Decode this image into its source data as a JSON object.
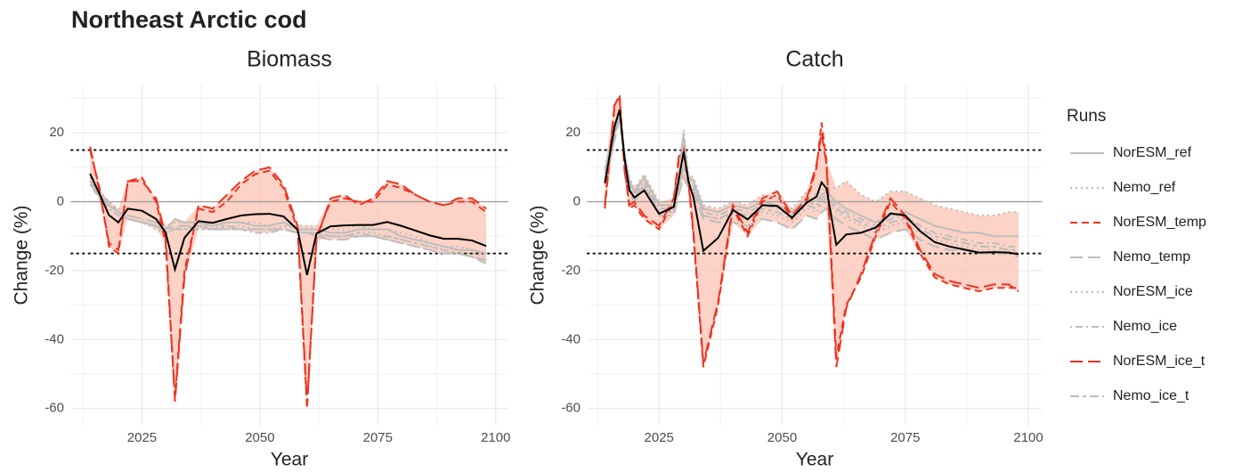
{
  "title": "Northeast Arctic cod",
  "legend_title": "Runs",
  "chart_data": [
    {
      "type": "line",
      "title": "Biomass",
      "xlabel": "Year",
      "ylabel": "Change (%)",
      "x": [
        2014,
        2016,
        2018,
        2020,
        2022,
        2025,
        2028,
        2030,
        2032,
        2034,
        2037,
        2040,
        2043,
        2046,
        2049,
        2052,
        2055,
        2058,
        2060,
        2062,
        2065,
        2068,
        2071,
        2074,
        2077,
        2080,
        2083,
        2086,
        2089,
        2092,
        2095,
        2098
      ],
      "xlim": [
        2010,
        2102.5
      ],
      "xticks": [
        2025,
        2050,
        2075,
        2100
      ],
      "ylim": [
        -65,
        34
      ],
      "yticks": [
        -60,
        -40,
        -20,
        0,
        20
      ],
      "hlines": [
        {
          "value": 15,
          "style": "dotted"
        },
        {
          "value": 0,
          "style": "solid"
        },
        {
          "value": -15,
          "style": "dotted"
        }
      ],
      "ribbon": true,
      "mean_line": true,
      "grid": true,
      "series": [
        {
          "name": "NorESM_ref",
          "color": "#bdbdbd",
          "dash": "solid",
          "values": [
            6,
            2,
            -1,
            -3,
            -5,
            -6,
            -7,
            -8,
            -5,
            -6,
            -6,
            -7,
            -6,
            -6,
            -7,
            -7,
            -6,
            -8,
            -8,
            -8,
            -9,
            -9,
            -8,
            -8,
            -8,
            -10,
            -11,
            -12,
            -13,
            -14,
            -14,
            -15
          ]
        },
        {
          "name": "Nemo_ref",
          "color": "#bdbdbd",
          "dash": "dotted",
          "values": [
            5,
            1,
            -2,
            -4,
            -5,
            -6,
            -8,
            -9,
            -8,
            -8,
            -7,
            -7,
            -7,
            -7,
            -8,
            -8,
            -7,
            -8,
            -9,
            -9,
            -10,
            -10,
            -9,
            -9,
            -10,
            -11,
            -12,
            -13,
            -14,
            -15,
            -15,
            -16
          ]
        },
        {
          "name": "NorESM_temp",
          "color": "#ee3322",
          "dash": "dashed",
          "values": [
            15,
            4,
            -13,
            -15,
            6,
            7,
            0,
            -12,
            -57,
            -20,
            -2,
            -3,
            0,
            5,
            8,
            9,
            4,
            -8,
            -60,
            -10,
            0,
            1,
            0,
            0,
            5,
            4,
            2,
            0,
            -1,
            0,
            0,
            -3
          ]
        },
        {
          "name": "Nemo_temp",
          "color": "#bdbdbd",
          "dash": "longdash",
          "values": [
            6,
            2,
            0,
            -3,
            -4,
            -5,
            -6,
            -8,
            -7,
            -7,
            -7,
            -8,
            -8,
            -8,
            -8,
            -8,
            -8,
            -9,
            -9,
            -10,
            -11,
            -11,
            -10,
            -10,
            -11,
            -12,
            -13,
            -14,
            -15,
            -15,
            -16,
            -17
          ]
        },
        {
          "name": "NorESM_ice",
          "color": "#bdbdbd",
          "dash": "dotted",
          "values": [
            7,
            3,
            0,
            -2,
            -4,
            -5,
            -6,
            -7,
            -6,
            -6,
            -6,
            -6,
            -6,
            -6,
            -6,
            -7,
            -6,
            -7,
            -7,
            -7,
            -8,
            -8,
            -7,
            -8,
            -8,
            -9,
            -10,
            -12,
            -13,
            -13,
            -14,
            -15
          ]
        },
        {
          "name": "Nemo_ice",
          "color": "#bdbdbd",
          "dash": "dotdash",
          "values": [
            5,
            1,
            -2,
            -4,
            -5,
            -6,
            -7,
            -8,
            -8,
            -8,
            -8,
            -8,
            -8,
            -8,
            -9,
            -9,
            -8,
            -9,
            -9,
            -10,
            -10,
            -10,
            -10,
            -10,
            -11,
            -12,
            -13,
            -14,
            -15,
            -15,
            -16,
            -17
          ]
        },
        {
          "name": "NorESM_ice_t",
          "color": "#ee3322",
          "dash": "longdash",
          "values": [
            16,
            3,
            -12,
            -14,
            6,
            6,
            1,
            -10,
            -58,
            -22,
            -1,
            -2,
            2,
            6,
            9,
            10,
            5,
            -7,
            -59,
            -11,
            1,
            2,
            -1,
            1,
            6,
            5,
            2,
            0,
            -1,
            1,
            1,
            -2
          ]
        },
        {
          "name": "Nemo_ice_t",
          "color": "#bdbdbd",
          "dash": "twodash",
          "values": [
            5,
            2,
            -1,
            -3,
            -5,
            -6,
            -7,
            -9,
            -8,
            -7,
            -8,
            -8,
            -7,
            -8,
            -8,
            -8,
            -8,
            -9,
            -9,
            -9,
            -10,
            -10,
            -9,
            -10,
            -10,
            -11,
            -12,
            -13,
            -14,
            -15,
            -16,
            -18
          ]
        }
      ]
    },
    {
      "type": "line",
      "title": "Catch",
      "xlabel": "Year",
      "ylabel": "Change (%)",
      "x": [
        2014,
        2016,
        2017,
        2018,
        2019,
        2020,
        2022,
        2025,
        2028,
        2029,
        2030,
        2031,
        2032,
        2034,
        2037,
        2040,
        2043,
        2046,
        2049,
        2052,
        2055,
        2057,
        2058,
        2059,
        2061,
        2063,
        2066,
        2069,
        2072,
        2075,
        2078,
        2081,
        2084,
        2087,
        2090,
        2093,
        2096,
        2098
      ],
      "xlim": [
        2010.5,
        2102.7
      ],
      "xticks": [
        2025,
        2050,
        2075,
        2100
      ],
      "ylim": [
        -65,
        34
      ],
      "yticks": [
        -60,
        -40,
        -20,
        0,
        20
      ],
      "hlines": [
        {
          "value": 15,
          "style": "dotted"
        },
        {
          "value": 0,
          "style": "solid"
        },
        {
          "value": -15,
          "style": "dotted"
        }
      ],
      "ribbon": true,
      "mean_line": true,
      "grid": true,
      "series": [
        {
          "name": "NorESM_ref",
          "color": "#bdbdbd",
          "dash": "solid",
          "values": [
            9,
            21,
            26,
            14,
            6,
            3,
            7,
            -1,
            -1,
            5,
            10,
            7,
            6,
            -2,
            -3,
            -1,
            -2,
            0,
            -1,
            -3,
            1,
            0,
            2,
            3,
            0,
            -2,
            -4,
            -6,
            -4,
            -3,
            -5,
            -7,
            -8,
            -9,
            -9,
            -10,
            -10,
            -10
          ]
        },
        {
          "name": "Nemo_ref",
          "color": "#bdbdbd",
          "dash": "dotted",
          "values": [
            7,
            19,
            25,
            13,
            4,
            1,
            5,
            -3,
            -3,
            3,
            8,
            5,
            4,
            -4,
            -5,
            -4,
            -5,
            -3,
            -4,
            -6,
            -2,
            -3,
            -1,
            0,
            -3,
            -5,
            -7,
            -9,
            -7,
            -6,
            -9,
            -11,
            -12,
            -13,
            -14,
            -14,
            -14,
            -15
          ]
        },
        {
          "name": "NorESM_temp",
          "color": "#ee3322",
          "dash": "dashed",
          "values": [
            -2,
            28,
            31,
            10,
            -2,
            -1,
            -5,
            -8,
            0,
            12,
            15,
            5,
            -10,
            -48,
            -30,
            -2,
            -10,
            0,
            2,
            -5,
            0,
            10,
            23,
            12,
            -45,
            -30,
            -22,
            -10,
            0,
            -5,
            -15,
            -22,
            -24,
            -25,
            -26,
            -25,
            -25,
            -25
          ]
        },
        {
          "name": "Nemo_temp",
          "color": "#bdbdbd",
          "dash": "longdash",
          "values": [
            6,
            18,
            24,
            12,
            3,
            0,
            4,
            -4,
            -4,
            2,
            7,
            4,
            3,
            -5,
            -6,
            -6,
            -7,
            -5,
            -6,
            -8,
            -4,
            -5,
            -3,
            -2,
            -5,
            -7,
            -9,
            -11,
            -9,
            -8,
            -11,
            -13,
            -14,
            -14,
            -15,
            -15,
            -15,
            -16
          ]
        },
        {
          "name": "NorESM_ice",
          "color": "#bdbdbd",
          "dash": "dotted",
          "values": [
            10,
            22,
            27,
            15,
            7,
            4,
            8,
            0,
            0,
            7,
            21,
            8,
            7,
            -1,
            -2,
            0,
            -1,
            2,
            1,
            -2,
            3,
            2,
            3,
            4,
            4,
            6,
            2,
            0,
            3,
            3,
            1,
            -1,
            -2,
            -3,
            -4,
            -4,
            -3,
            -3
          ]
        },
        {
          "name": "Nemo_ice",
          "color": "#bdbdbd",
          "dash": "dotdash",
          "values": [
            8,
            20,
            26,
            14,
            5,
            2,
            6,
            -2,
            -2,
            5,
            20,
            6,
            5,
            -3,
            -4,
            -2,
            -3,
            -1,
            -2,
            -4,
            0,
            -1,
            1,
            2,
            -1,
            -3,
            -5,
            -7,
            -5,
            -4,
            -7,
            -9,
            -10,
            -11,
            -12,
            -12,
            -13,
            -13
          ]
        },
        {
          "name": "NorESM_ice_t",
          "color": "#ee3322",
          "dash": "longdash",
          "values": [
            -1,
            29,
            30,
            9,
            -1,
            0,
            -4,
            -7,
            1,
            13,
            16,
            6,
            -9,
            -47,
            -29,
            -1,
            -9,
            1,
            3,
            -4,
            1,
            11,
            20,
            11,
            -48,
            -31,
            -21,
            -9,
            1,
            -4,
            -14,
            -21,
            -23,
            -24,
            -25,
            -24,
            -24,
            -26
          ]
        },
        {
          "name": "Nemo_ice_t",
          "color": "#bdbdbd",
          "dash": "twodash",
          "values": [
            6,
            19,
            25,
            13,
            4,
            1,
            5,
            -3,
            -3,
            4,
            19,
            5,
            4,
            -4,
            -5,
            -3,
            -4,
            -2,
            -3,
            -5,
            -1,
            -2,
            0,
            1,
            -2,
            -4,
            -6,
            -8,
            -6,
            -5,
            -8,
            -10,
            -11,
            -12,
            -13,
            -13,
            -14,
            -14
          ]
        }
      ]
    }
  ]
}
